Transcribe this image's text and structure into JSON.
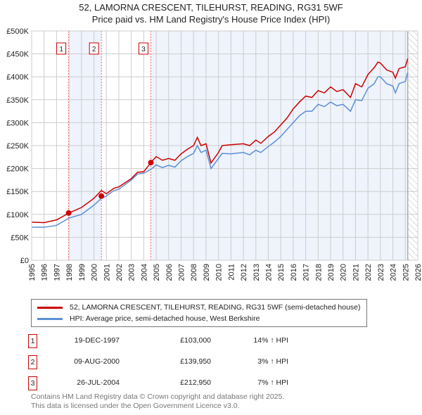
{
  "chart_data": {
    "type": "line",
    "title": "52, LAMORNA CRESCENT, TILEHURST, READING, RG31 5WF",
    "subtitle": "Price paid vs. HM Land Registry's House Price Index (HPI)",
    "xlim": [
      1995,
      2026
    ],
    "ylim": [
      0,
      500000
    ],
    "y_ticks": [
      0,
      50000,
      100000,
      150000,
      200000,
      250000,
      300000,
      350000,
      400000,
      450000,
      500000
    ],
    "y_tick_labels": [
      "£0",
      "£50K",
      "£100K",
      "£150K",
      "£200K",
      "£250K",
      "£300K",
      "£350K",
      "£400K",
      "£450K",
      "£500K"
    ],
    "x_ticks": [
      1995,
      1996,
      1997,
      1998,
      1999,
      2000,
      2001,
      2002,
      2003,
      2004,
      2005,
      2006,
      2007,
      2008,
      2009,
      2010,
      2011,
      2012,
      2013,
      2014,
      2015,
      2016,
      2017,
      2018,
      2019,
      2020,
      2021,
      2022,
      2023,
      2024,
      2025,
      2026
    ],
    "grid": true,
    "x": [
      1995,
      1996,
      1997,
      1998,
      1999,
      2000,
      2000.6,
      2001,
      2001.6,
      2002,
      2003,
      2003.5,
      2004,
      2004.57,
      2005,
      2005.5,
      2006,
      2006.5,
      2007,
      2007.5,
      2008,
      2008.3,
      2008.6,
      2009,
      2009.4,
      2010,
      2010.3,
      2011,
      2012,
      2012.5,
      2013,
      2013.4,
      2014,
      2014.5,
      2015,
      2015.5,
      2016,
      2016.5,
      2017,
      2017.5,
      2018,
      2018.5,
      2019,
      2019.5,
      2020,
      2020.6,
      2021,
      2021.5,
      2022,
      2022.5,
      2022.8,
      2023,
      2023.5,
      2024,
      2024.2,
      2024.5,
      2025,
      2025.2
    ],
    "series": [
      {
        "name": "52, LAMORNA CRESCENT, TILEHURST, READING, RG31 5WF (semi-detached house)",
        "color": "#cc0000",
        "values": [
          83,
          82,
          88,
          103,
          115,
          135,
          152,
          145,
          157,
          160,
          178,
          192,
          193,
          213,
          226,
          218,
          222,
          218,
          232,
          242,
          250,
          268,
          250,
          254,
          212,
          235,
          250,
          252,
          254,
          250,
          262,
          255,
          270,
          280,
          295,
          310,
          330,
          345,
          358,
          355,
          370,
          365,
          378,
          368,
          372,
          355,
          385,
          378,
          405,
          420,
          432,
          430,
          415,
          410,
          397,
          418,
          422,
          440
        ]
      },
      {
        "name": "HPI: Average price, semi-detached house, West Berkshire",
        "color": "#5b8fd4",
        "values": [
          72,
          72,
          76,
          92,
          100,
          120,
          135,
          140,
          152,
          155,
          175,
          188,
          190,
          198,
          208,
          202,
          207,
          203,
          217,
          226,
          233,
          250,
          235,
          240,
          200,
          222,
          233,
          232,
          235,
          230,
          240,
          235,
          248,
          258,
          270,
          285,
          300,
          315,
          325,
          325,
          340,
          335,
          345,
          337,
          340,
          325,
          350,
          348,
          375,
          385,
          400,
          400,
          385,
          380,
          365,
          385,
          390,
          410
        ]
      }
    ],
    "value_unit": "thousand GBP",
    "transactions": [
      {
        "num": "1",
        "year": 1997.97,
        "date": "19-DEC-1997",
        "price": "£103,000",
        "price_value": 103000,
        "hpi": "14% ↑ HPI"
      },
      {
        "num": "2",
        "year": 2000.6,
        "date": "09-AUG-2000",
        "price": "£139,950",
        "price_value": 139950,
        "hpi": "3% ↑ HPI"
      },
      {
        "num": "3",
        "year": 2004.57,
        "date": "26-JUL-2004",
        "price": "£212,950",
        "price_value": 212950,
        "hpi": "7% ↑ HPI"
      }
    ],
    "forecast_start": 2025.2
  },
  "footer": [
    "Contains HM Land Registry data © Crown copyright and database right 2025.",
    "This data is licensed under the Open Government Licence v3.0."
  ]
}
